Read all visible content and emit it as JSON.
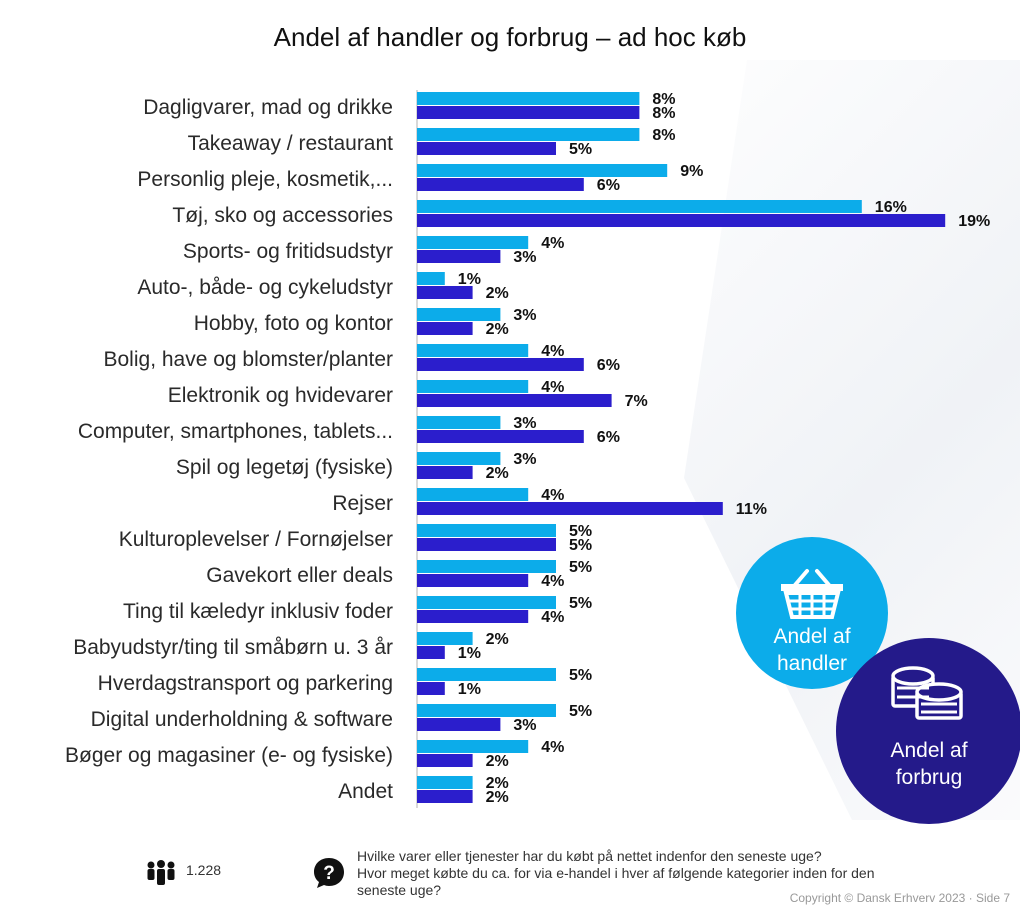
{
  "colors": {
    "handler": "#0cacea",
    "forbrug": "#2b1ecc",
    "circle_forbrug": "#241a8a"
  },
  "chart_data": {
    "type": "bar",
    "orientation": "horizontal",
    "title": "Andel af handler og forbrug – ad hoc køb",
    "categories": [
      "Dagligvarer, mad og drikke",
      "Takeaway / restaurant",
      "Personlig pleje, kosmetik,...",
      "Tøj, sko og accessories",
      "Sports- og fritidsudstyr",
      "Auto-, både- og cykeludstyr",
      "Hobby, foto og kontor",
      "Bolig, have og blomster/planter",
      "Elektronik og hvidevarer",
      "Computer, smartphones, tablets...",
      "Spil og legetøj (fysiske)",
      "Rejser",
      "Kulturoplevelser / Fornøjelser",
      "Gavekort eller deals",
      "Ting til kæledyr inklusiv foder",
      "Babyudstyr/ting til småbørn u. 3 år",
      "Hverdagstransport og parkering",
      "Digital underholdning & software",
      "Bøger og magasiner (e- og fysiske)",
      "Andet"
    ],
    "series": [
      {
        "name": "Andel af handler",
        "values": [
          8,
          8,
          9,
          16,
          4,
          1,
          3,
          4,
          4,
          3,
          3,
          4,
          5,
          5,
          5,
          2,
          5,
          5,
          4,
          2
        ]
      },
      {
        "name": "Andel af forbrug",
        "values": [
          8,
          5,
          6,
          19,
          3,
          2,
          2,
          6,
          7,
          6,
          2,
          11,
          5,
          4,
          4,
          1,
          1,
          3,
          2,
          2
        ]
      }
    ],
    "value_suffix": "%",
    "legend": "bottom-right"
  },
  "legend": {
    "handler": "Andel af\nhandler",
    "forbrug": "Andel af\nforbrug"
  },
  "footer": {
    "respondents": "1.228",
    "question": "Hvilke varer eller tjenester har du købt på nettet indenfor den seneste uge?\nHvor meget købte du ca. for via e-handel i hver af følgende kategorier inden for den\nseneste uge?",
    "copyright": "Copyright © Dansk Erhverv 2023 · Side 7"
  },
  "icons": {
    "basket": "basket-icon",
    "coins": "coins-icon",
    "people": "people-icon",
    "question": "question-icon"
  }
}
